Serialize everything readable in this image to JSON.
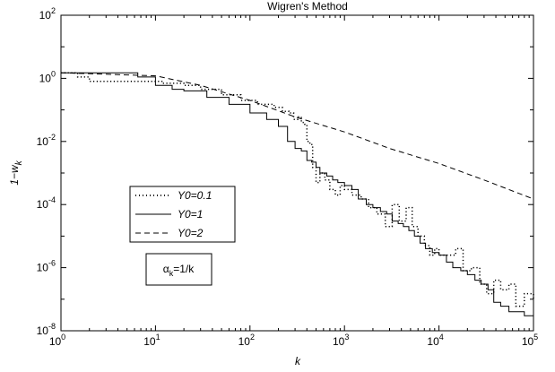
{
  "chart_data": {
    "type": "line",
    "title": "Wigren's Method",
    "xlabel": "k",
    "ylabel": "1−w",
    "ylabel_subscript": "k",
    "x_scale": "log",
    "y_scale": "log",
    "xlim": [
      1,
      100000
    ],
    "ylim": [
      1e-08,
      100
    ],
    "grid": false,
    "x_ticks": [
      {
        "value": 1,
        "base": "10",
        "exp": "0"
      },
      {
        "value": 10,
        "base": "10",
        "exp": "1"
      },
      {
        "value": 100,
        "base": "10",
        "exp": "2"
      },
      {
        "value": 1000,
        "base": "10",
        "exp": "3"
      },
      {
        "value": 10000,
        "base": "10",
        "exp": "4"
      },
      {
        "value": 100000,
        "base": "10",
        "exp": "5"
      }
    ],
    "y_ticks": [
      {
        "value": 1e-08,
        "base": "10",
        "exp": "-8"
      },
      {
        "value": 1e-06,
        "base": "10",
        "exp": "-6"
      },
      {
        "value": 0.0001,
        "base": "10",
        "exp": "-4"
      },
      {
        "value": 0.01,
        "base": "10",
        "exp": "-2"
      },
      {
        "value": 1,
        "base": "10",
        "exp": "0"
      },
      {
        "value": 100,
        "base": "10",
        "exp": "2"
      }
    ],
    "legend": {
      "placement": "center-left",
      "entries": [
        {
          "label": "Y0=0.1",
          "style": "dotted"
        },
        {
          "label": "Y0=1",
          "style": "solid"
        },
        {
          "label": "Y0=2",
          "style": "dashed"
        }
      ]
    },
    "annotation": {
      "alpha": "α",
      "sub": "k",
      "rest": "=1/k"
    },
    "series": [
      {
        "name": "Y0=0.1",
        "style": "dotted",
        "x": [
          1,
          1.5,
          2,
          3,
          5,
          8,
          12,
          20,
          30,
          50,
          80,
          120,
          180,
          220,
          260,
          290,
          320,
          350,
          380,
          400,
          430,
          460,
          500,
          550,
          620,
          700,
          800,
          900,
          1000,
          1200,
          1500,
          1800,
          2200,
          2700,
          3200,
          3800,
          4500,
          5200,
          6000,
          7000,
          8000,
          9000,
          10000,
          12000,
          15000,
          18000,
          22000,
          27000,
          32000,
          38000,
          45000,
          55000,
          65000,
          80000,
          100000
        ],
        "y": [
          1.5,
          1.1,
          0.8,
          0.8,
          0.8,
          0.8,
          0.7,
          0.6,
          0.45,
          0.3,
          0.2,
          0.15,
          0.12,
          0.09,
          0.08,
          0.05,
          0.06,
          0.04,
          0.035,
          0.01,
          0.008,
          0.0015,
          0.0005,
          0.001,
          0.0006,
          0.0003,
          0.0002,
          0.0004,
          0.0003,
          0.0002,
          0.00015,
          8e-05,
          5e-05,
          2e-05,
          0.0001,
          3e-05,
          8e-05,
          2e-05,
          1e-05,
          5e-06,
          2.5e-06,
          4e-06,
          2.5e-06,
          2.5e-06,
          4e-06,
          8e-07,
          1e-06,
          3e-07,
          1.5e-07,
          4e-07,
          2e-07,
          3e-07,
          6e-08,
          1.5e-07,
          1e-07
        ]
      },
      {
        "name": "Y0=1",
        "style": "solid",
        "x": [
          1,
          6,
          6.5,
          10,
          15,
          20,
          35,
          60,
          100,
          150,
          200,
          250,
          300,
          350,
          400,
          450,
          500,
          550,
          650,
          750,
          850,
          1000,
          1200,
          1400,
          1700,
          2000,
          2400,
          2800,
          3200,
          3700,
          4200,
          4800,
          5500,
          6300,
          7200,
          8500,
          10000,
          12000,
          14000,
          17000,
          20000,
          24000,
          28000,
          33000,
          38000,
          45000,
          55000,
          65000,
          80000,
          100000
        ],
        "y": [
          1.5,
          1.5,
          1.1,
          0.6,
          0.45,
          0.4,
          0.25,
          0.15,
          0.08,
          0.05,
          0.03,
          0.01,
          0.006,
          0.005,
          0.0025,
          0.0022,
          0.0015,
          0.001,
          0.0008,
          0.0006,
          0.0005,
          0.0004,
          0.0003,
          0.00015,
          0.0001,
          8e-05,
          6e-05,
          5e-05,
          3e-05,
          2.5e-05,
          2e-05,
          1.5e-05,
          1e-05,
          6e-06,
          4e-06,
          3e-06,
          2.5e-06,
          1.5e-06,
          1e-06,
          8e-07,
          6e-07,
          4e-07,
          3e-07,
          2e-07,
          8e-08,
          6e-08,
          4e-08,
          4e-08,
          3e-08,
          3e-08
        ]
      },
      {
        "name": "Y0=2",
        "style": "dashed",
        "x": [
          1,
          10,
          30,
          100,
          300,
          1000,
          3000,
          10000,
          30000,
          100000
        ],
        "y": [
          1.5,
          1.2,
          0.6,
          0.2,
          0.06,
          0.02,
          0.006,
          0.002,
          0.0006,
          0.00015
        ]
      }
    ]
  }
}
